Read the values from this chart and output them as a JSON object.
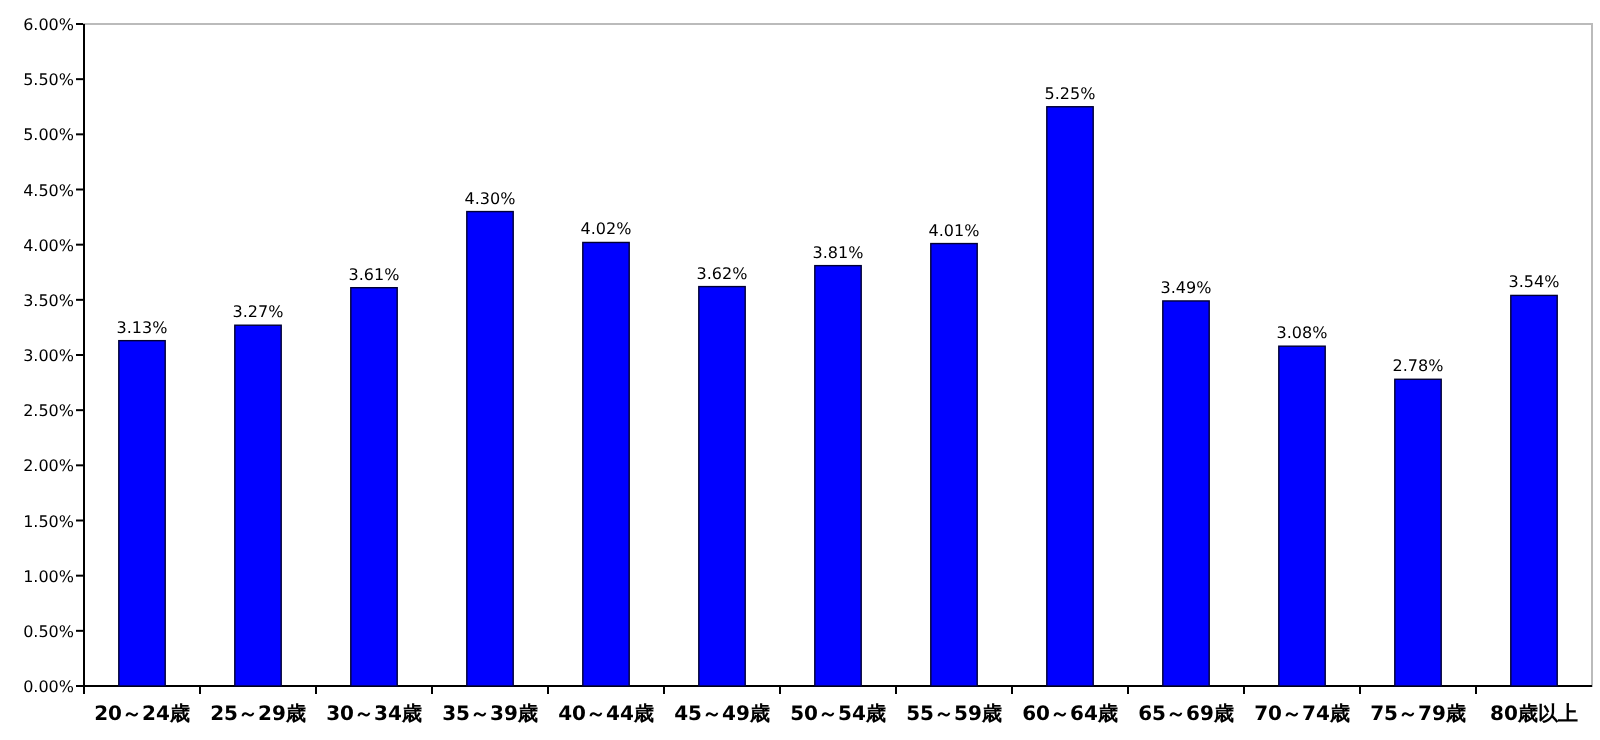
{
  "chart_data": {
    "type": "bar",
    "categories": [
      "20～24歳",
      "25～29歳",
      "30～34歳",
      "35～39歳",
      "40～44歳",
      "45～49歳",
      "50～54歳",
      "55～59歳",
      "60～64歳",
      "65～69歳",
      "70～74歳",
      "75～79歳",
      "80歳以上"
    ],
    "values": [
      3.13,
      3.27,
      3.61,
      4.3,
      4.02,
      3.62,
      3.81,
      4.01,
      5.25,
      3.49,
      3.08,
      2.78,
      3.54
    ],
    "value_labels": [
      "3.13%",
      "3.27%",
      "3.61%",
      "4.30%",
      "4.02%",
      "3.62%",
      "3.81%",
      "4.01%",
      "5.25%",
      "3.49%",
      "3.08%",
      "2.78%",
      "3.54%"
    ],
    "color": "#0000ff",
    "ylim": [
      0,
      6
    ],
    "yticks": [
      {
        "value": 0,
        "label": "0.00%"
      },
      {
        "value": 0.5,
        "label": "0.50%"
      },
      {
        "value": 1,
        "label": "1.00%"
      },
      {
        "value": 1.5,
        "label": "1.50%"
      },
      {
        "value": 2,
        "label": "2.00%"
      },
      {
        "value": 2.5,
        "label": "2.50%"
      },
      {
        "value": 3,
        "label": "3.00%"
      },
      {
        "value": 3.5,
        "label": "3.50%"
      },
      {
        "value": 4,
        "label": "4.00%"
      },
      {
        "value": 4.5,
        "label": "4.50%"
      },
      {
        "value": 5,
        "label": "5.00%"
      },
      {
        "value": 5.5,
        "label": "5.50%"
      },
      {
        "value": 6,
        "label": "6.00%"
      }
    ],
    "grid": false
  }
}
